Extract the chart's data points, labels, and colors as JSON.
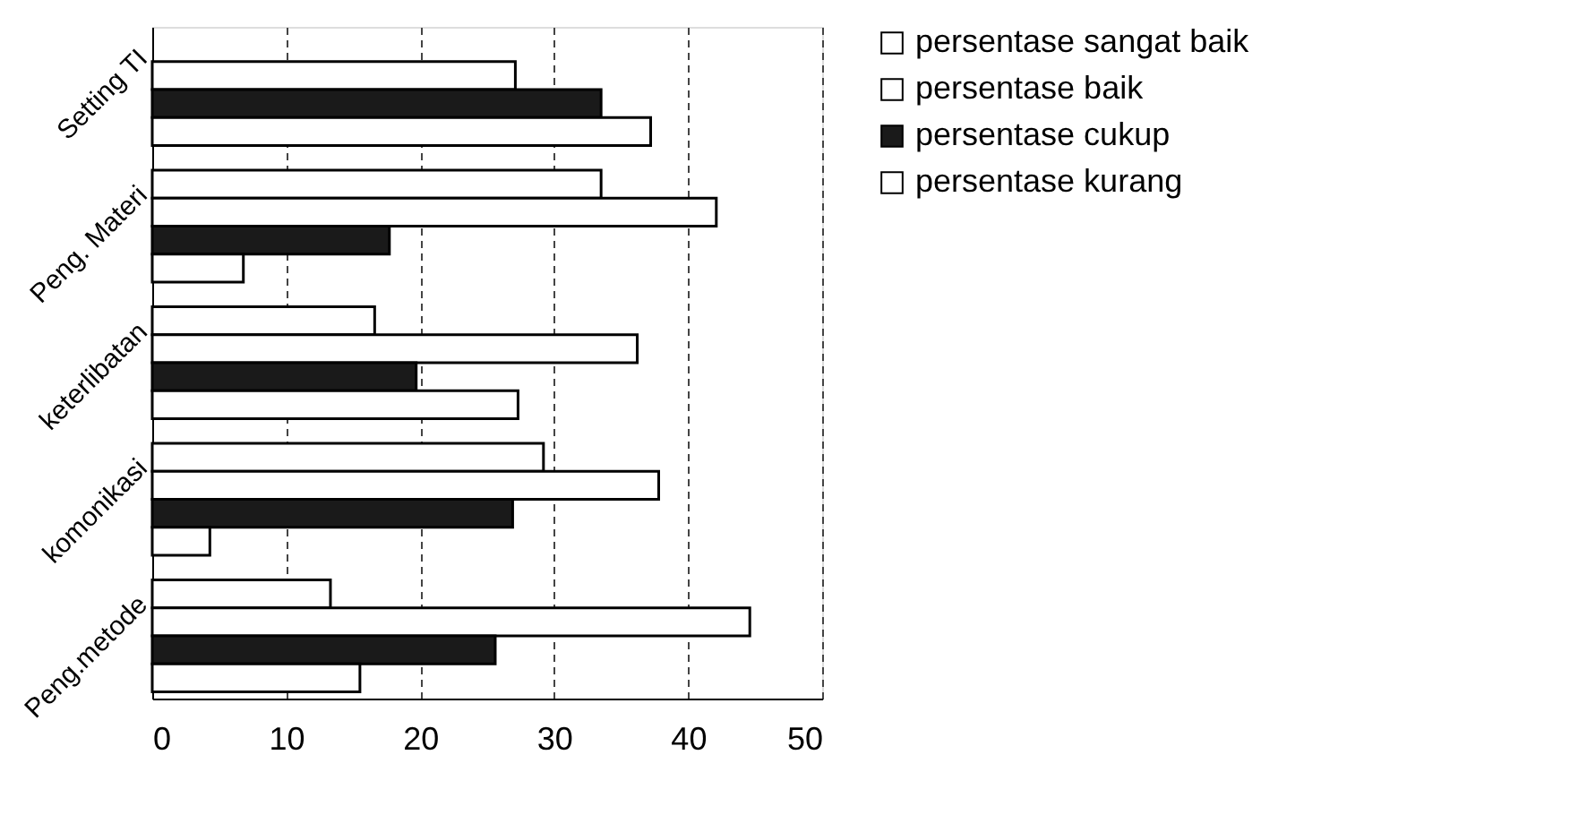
{
  "chart_data": {
    "type": "bar",
    "orientation": "horizontal",
    "categories": [
      "Setting TI",
      "Peng. Materi",
      "keterlibatan",
      "komonikasi",
      "Peng.metode"
    ],
    "series": [
      {
        "name": "persentase sangat baik",
        "color": "#ffffff",
        "values": [
          null,
          33.5,
          16.6,
          29.2,
          13.3
        ]
      },
      {
        "name": "persentase baik",
        "color": "#ffffff",
        "values": [
          27.1,
          42.1,
          36.2,
          37.8,
          44.6
        ]
      },
      {
        "name": "persentase cukup",
        "color": "#1a1a1a",
        "values": [
          33.5,
          17.7,
          19.7,
          26.9,
          25.6
        ]
      },
      {
        "name": "persentase kurang",
        "color": "#ffffff",
        "values": [
          37.2,
          6.8,
          27.3,
          4.3,
          15.5
        ]
      }
    ],
    "xlim": [
      0,
      50
    ],
    "xticks": [
      0,
      10,
      20,
      30,
      40,
      50
    ],
    "grid": "x",
    "legend": "right"
  }
}
